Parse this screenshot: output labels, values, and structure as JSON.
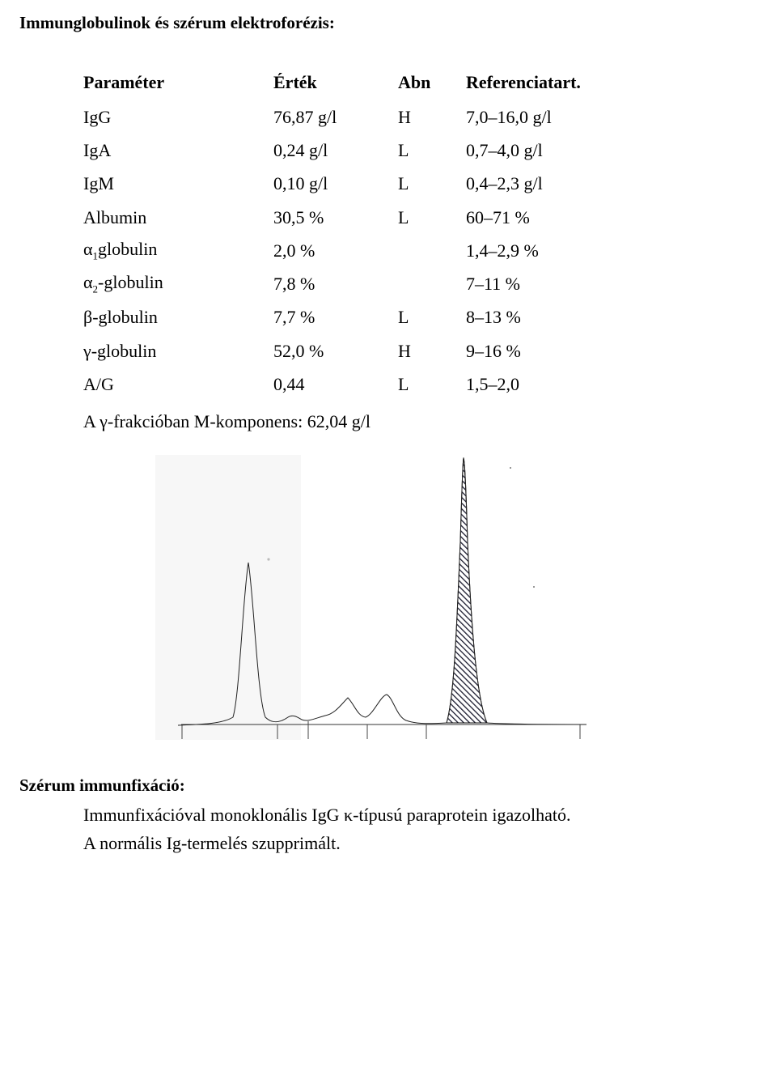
{
  "section1": {
    "title": "Immunglobulinok és szérum elektroforézis:"
  },
  "table": {
    "headers": [
      "Paraméter",
      "Érték",
      "Abn",
      "Referenciatart."
    ],
    "rows": [
      {
        "param": "IgG",
        "value": "76,87 g/l",
        "abn": "H",
        "ref": "7,0–16,0 g/l"
      },
      {
        "param": "IgA",
        "value": "0,24 g/l",
        "abn": "L",
        "ref": "0,7–4,0 g/l"
      },
      {
        "param": "IgM",
        "value": "0,10 g/l",
        "abn": "L",
        "ref": "0,4–2,3 g/l"
      },
      {
        "param": "Albumin",
        "value": "30,5 %",
        "abn": "L",
        "ref": "60–71 %"
      },
      {
        "param": "α",
        "param_sub": "1",
        "param_rest": "globulin",
        "value": "2,0 %",
        "abn": "",
        "ref": "1,4–2,9 %"
      },
      {
        "param": "α",
        "param_sub": "2",
        "param_rest": "-globulin",
        "value": "7,8 %",
        "abn": "",
        "ref": "7–11 %"
      },
      {
        "param": "β-globulin",
        "value": "7,7 %",
        "abn": "L",
        "ref": "8–13 %"
      },
      {
        "param": "γ-globulin",
        "value": "52,0 %",
        "abn": "H",
        "ref": "9–16 %"
      },
      {
        "param": "A/G",
        "value": "0,44",
        "abn": "L",
        "ref": "1,5–2,0"
      }
    ],
    "note": "A γ-frakcióban M-komponens: 62,04 g/l"
  },
  "electrophoresis": {
    "peaks": [
      "albumin",
      "alpha1",
      "alpha2",
      "beta1",
      "beta2",
      "gamma M-component"
    ],
    "m_component_hatched": true
  },
  "section2": {
    "title": "Szérum immunfixáció:",
    "line1": "Immunfixációval monoklonális IgG κ-típusú paraprotein igazolható.",
    "line2": "A normális Ig-termelés szupprimált."
  }
}
